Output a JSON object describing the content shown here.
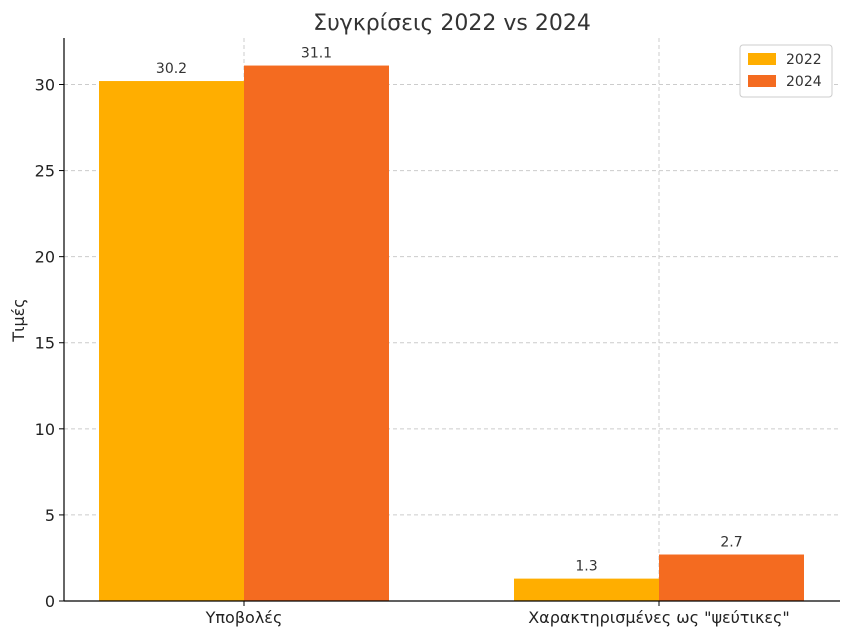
{
  "chart_data": {
    "type": "bar",
    "title": "Συγκρίσεις 2022 vs 2024",
    "xlabel": "",
    "ylabel": "Τιμές",
    "categories": [
      "Υποβολές",
      "Χαρακτηρισμένες ως \"ψεύτικες\""
    ],
    "series": [
      {
        "name": "2022",
        "values": [
          30.2,
          1.3
        ],
        "color": "#FFAE00"
      },
      {
        "name": "2024",
        "values": [
          31.1,
          2.7
        ],
        "color": "#F46B20"
      }
    ],
    "ylim": [
      0,
      32.7
    ],
    "yticks": [
      "0",
      "5",
      "10",
      "15",
      "20",
      "25",
      "30"
    ],
    "grid": true,
    "legend_position": "top-right"
  }
}
